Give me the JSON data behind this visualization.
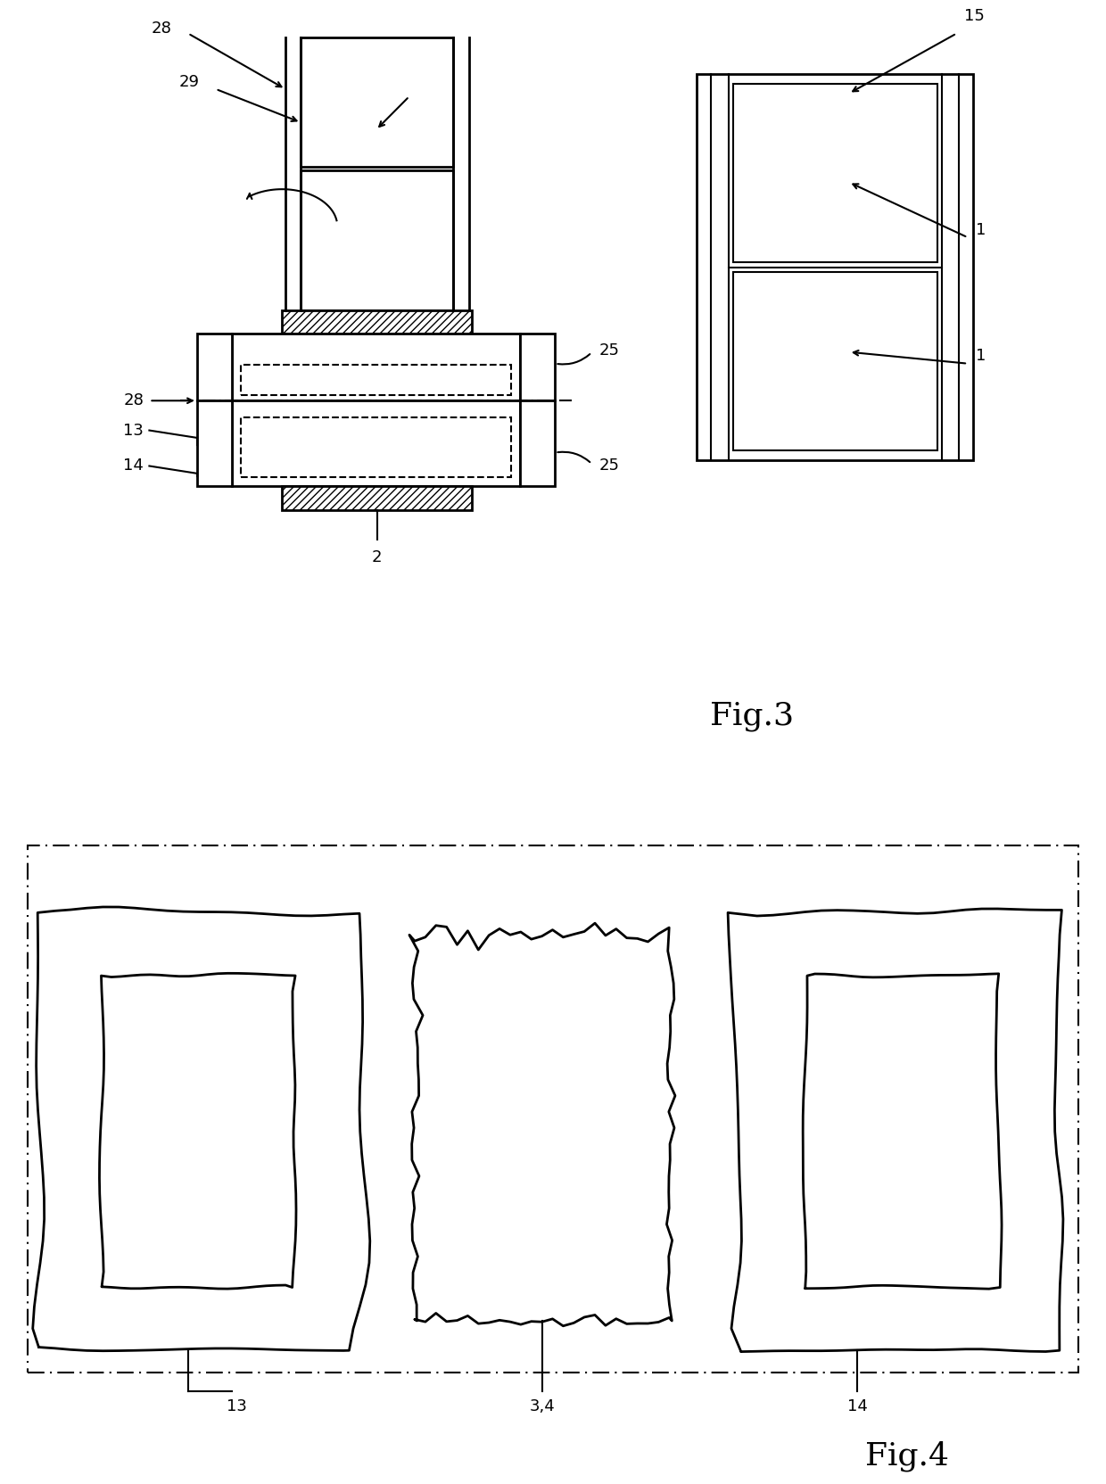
{
  "bg_color": "#ffffff",
  "lc": "#000000",
  "fig3_label": "Fig.3",
  "fig4_label": "Fig.4"
}
